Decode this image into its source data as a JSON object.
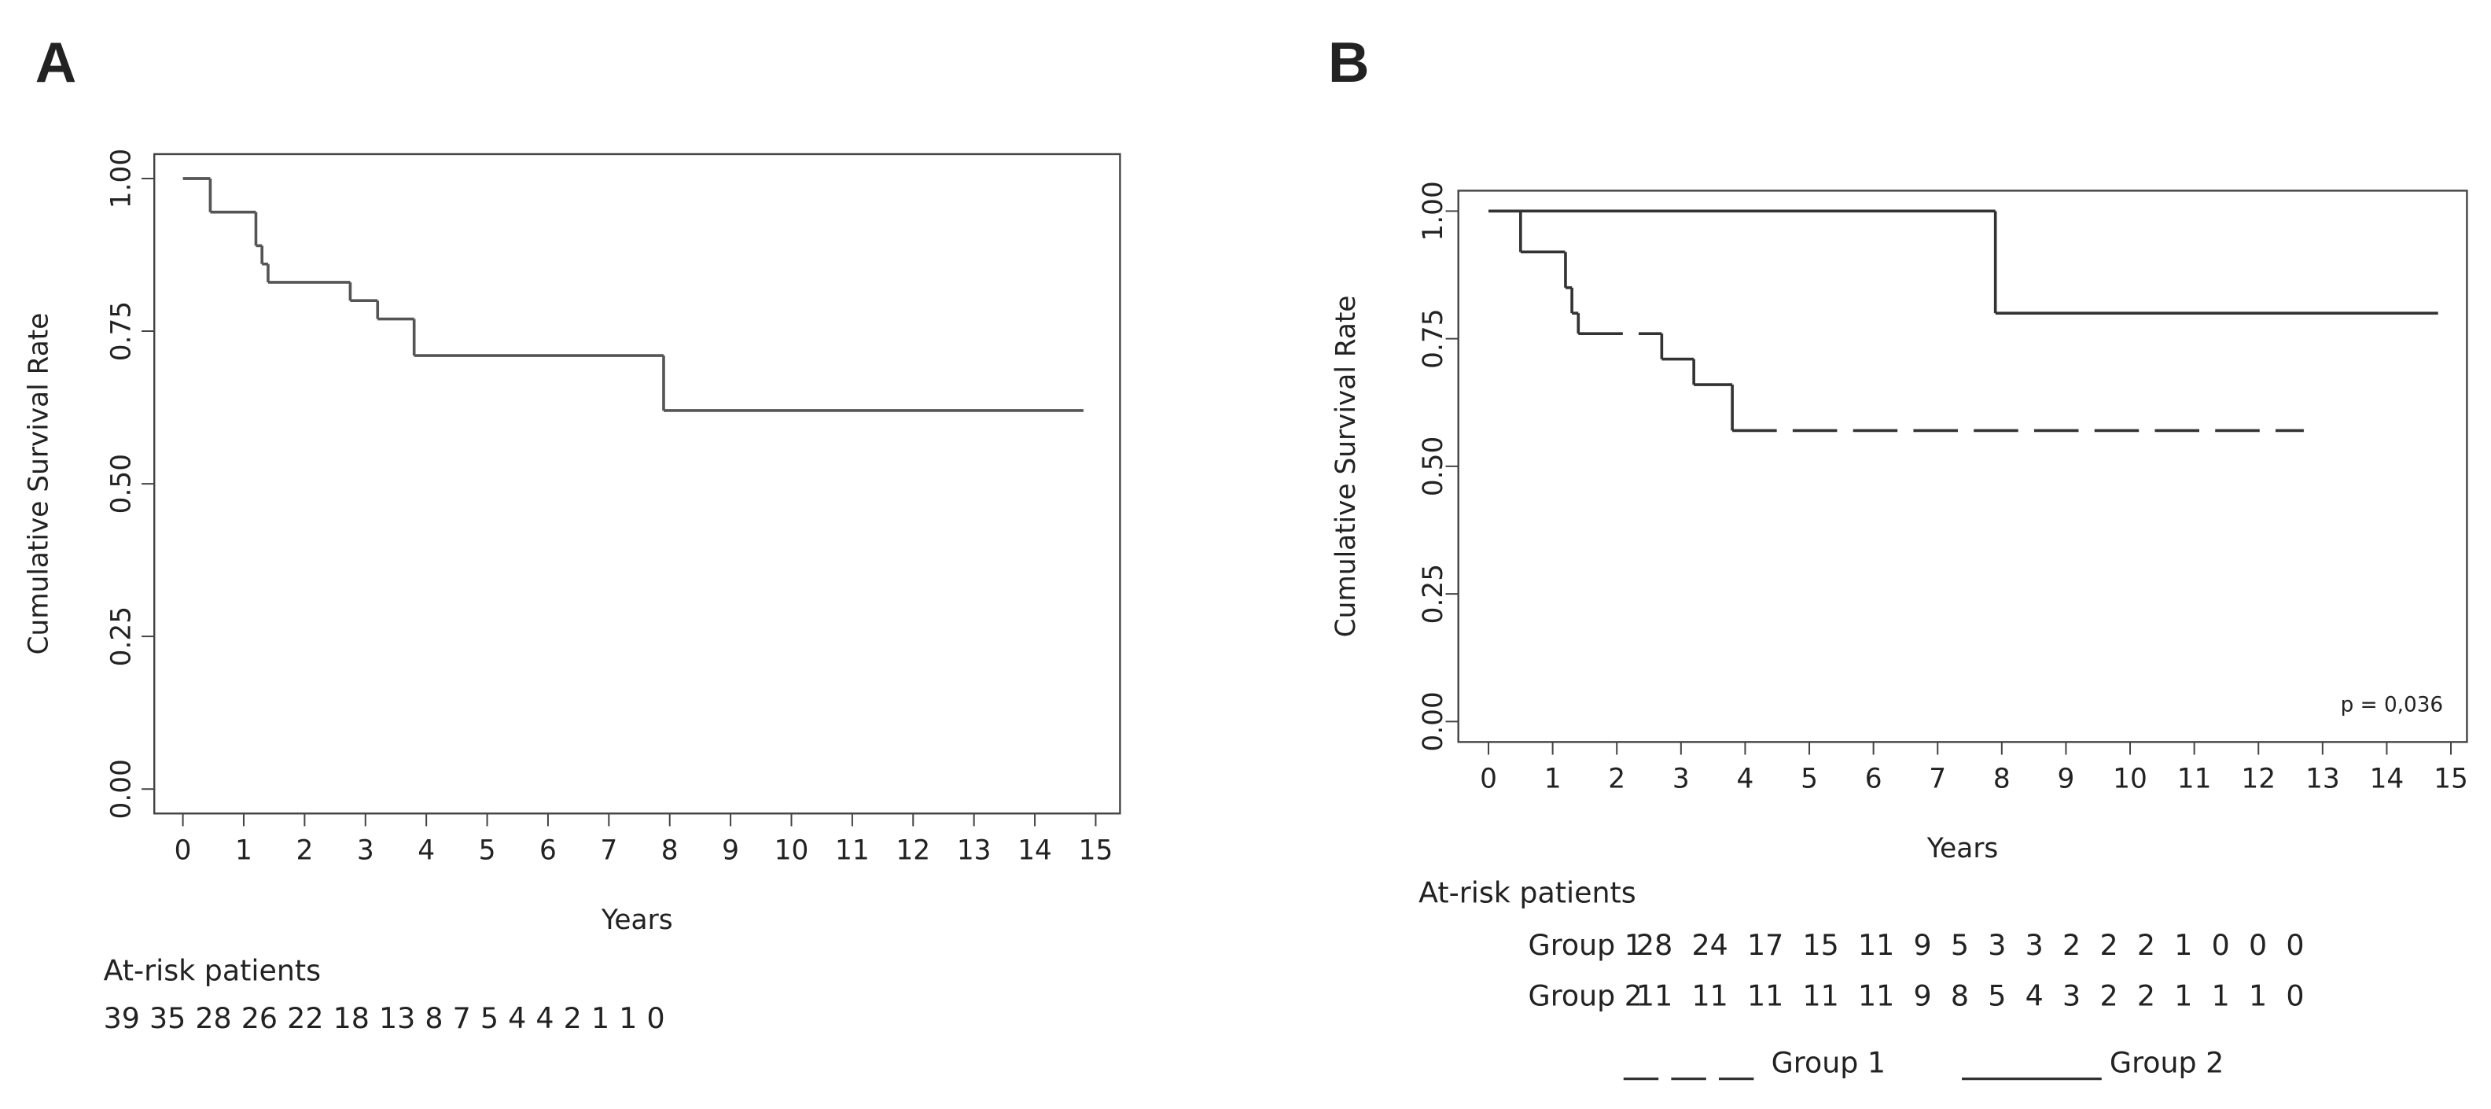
{
  "chart_data": [
    {
      "type": "step",
      "panel": "A",
      "xlabel": "Years",
      "ylabel": "Cumulative Survival Rate",
      "xlim": [
        -0.47,
        15.4
      ],
      "ylim": [
        -0.04,
        1.04
      ],
      "xticks": [
        0,
        1,
        2,
        3,
        4,
        5,
        6,
        7,
        8,
        9,
        10,
        11,
        12,
        13,
        14,
        15
      ],
      "yticks": [
        {
          "value": 0,
          "label": "0.00"
        },
        {
          "value": 0.25,
          "label": "0.25"
        },
        {
          "value": 0.5,
          "label": "0.50"
        },
        {
          "value": 0.75,
          "label": "0.75"
        },
        {
          "value": 1,
          "label": "1.00"
        }
      ],
      "series": [
        {
          "color": "#555555",
          "line_style": "solid",
          "x": [
            0,
            0.45,
            1.2,
            1.3,
            1.4,
            2.75,
            3.2,
            3.8,
            7.9,
            14.8
          ],
          "values": [
            1,
            0.945,
            0.89,
            0.86,
            0.83,
            0.8,
            0.77,
            0.71,
            0.62,
            0.62
          ]
        }
      ],
      "at_risk": {
        "title": "At-risk patients",
        "rows": [
          {
            "values": [
              39,
              35,
              28,
              26,
              22,
              18,
              13,
              8,
              7,
              5,
              4,
              4,
              2,
              1,
              1,
              0
            ]
          }
        ]
      }
    },
    {
      "type": "step",
      "panel": "B",
      "xlabel": "Years",
      "ylabel": "Cumulative Survival Rate",
      "xlim": [
        -0.47,
        15.25
      ],
      "ylim": [
        -0.04,
        1.04
      ],
      "xticks": [
        0,
        1,
        2,
        3,
        4,
        5,
        6,
        7,
        8,
        9,
        10,
        11,
        12,
        13,
        14,
        15
      ],
      "yticks": [
        {
          "value": 0,
          "label": "0.00"
        },
        {
          "value": 0.25,
          "label": "0.25"
        },
        {
          "value": 0.5,
          "label": "0.50"
        },
        {
          "value": 0.75,
          "label": "0.75"
        },
        {
          "value": 1,
          "label": "1.00"
        }
      ],
      "annotation": "p = 0,036",
      "legend": "bottom",
      "series": [
        {
          "name": "Group 1",
          "color": "#333333",
          "line_style": "dashed",
          "x": [
            0,
            0.5,
            1.2,
            1.3,
            1.4,
            2.7,
            3.2,
            3.8,
            12.7
          ],
          "values": [
            1,
            0.92,
            0.85,
            0.8,
            0.76,
            0.71,
            0.66,
            0.57,
            0.57
          ]
        },
        {
          "name": "Group 2",
          "color": "#333333",
          "line_style": "solid",
          "x": [
            0,
            7.9,
            14.8
          ],
          "values": [
            1,
            0.8,
            0.8
          ]
        }
      ],
      "at_risk": {
        "title": "At-risk patients",
        "rows": [
          {
            "name": "Group 1",
            "values": [
              28,
              24,
              17,
              15,
              11,
              9,
              5,
              3,
              3,
              2,
              2,
              2,
              1,
              0,
              0,
              0
            ]
          },
          {
            "name": "Group 2",
            "values": [
              11,
              11,
              11,
              11,
              11,
              9,
              8,
              5,
              4,
              3,
              2,
              2,
              1,
              1,
              1,
              0
            ]
          }
        ]
      }
    }
  ]
}
